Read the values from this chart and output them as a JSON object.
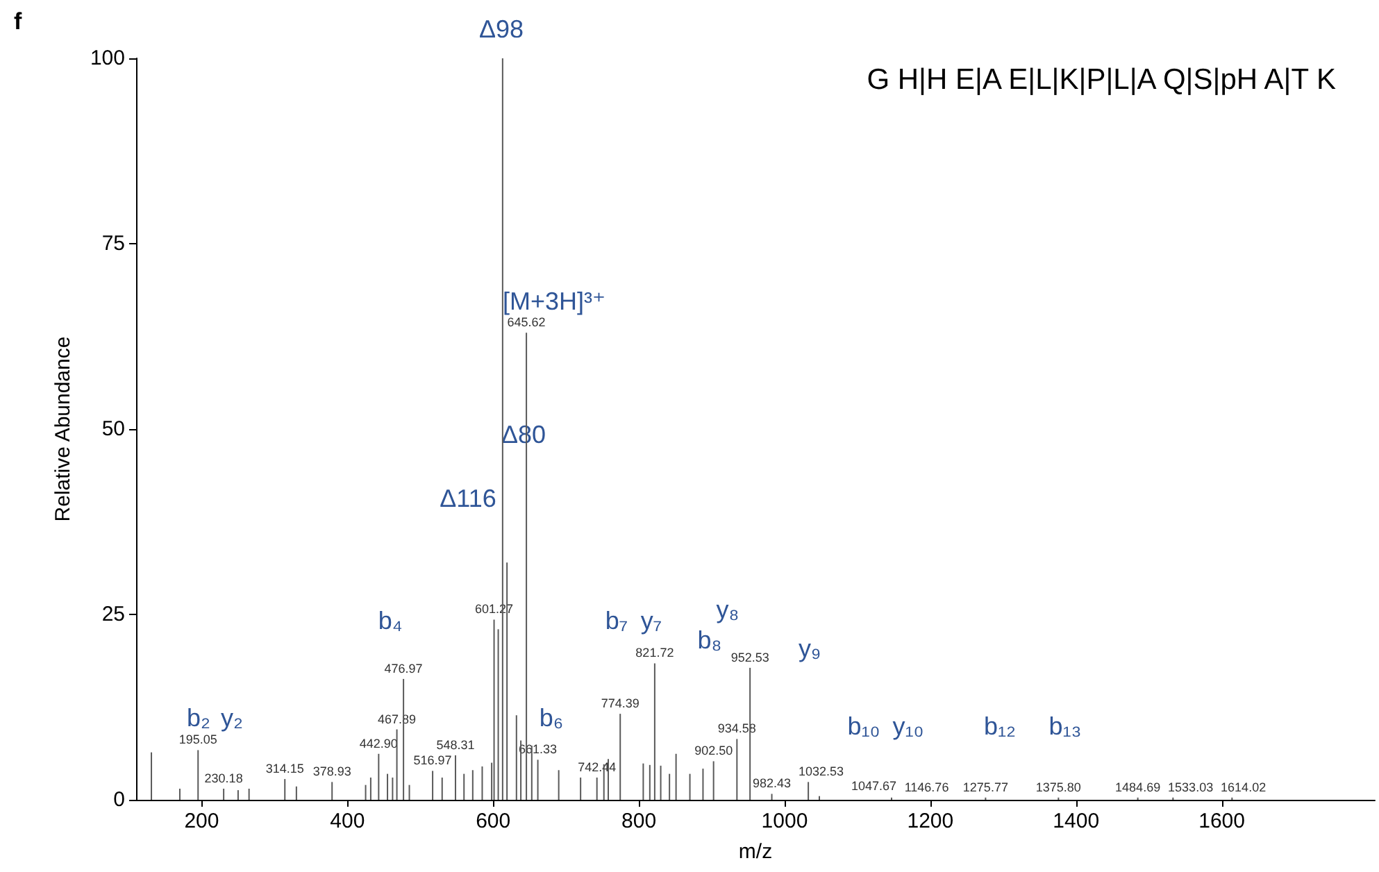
{
  "chart_data": {
    "type": "bar",
    "xlabel": "m/z",
    "ylabel": "Relative Abundance",
    "color": "#595959",
    "x": [
      131,
      170,
      195.05,
      230.18,
      250,
      265,
      314.15,
      330,
      378.93,
      425,
      432,
      442.9,
      455,
      462,
      467.89,
      476.97,
      485,
      516.97,
      530,
      548.31,
      560,
      572,
      585,
      598,
      601.27,
      607,
      613,
      619,
      632,
      638,
      645.62,
      653,
      661.33,
      690,
      720,
      742.44,
      752,
      758,
      774.39,
      806,
      815,
      821.72,
      830,
      842,
      851,
      870,
      888,
      902.5,
      934.58,
      952.53,
      982.43,
      1032.53,
      1047.67,
      1146.76,
      1275.77,
      1375.8,
      1484.69,
      1533.03,
      1614.02
    ],
    "values": [
      6.4,
      1.5,
      6.7,
      1.5,
      1.3,
      1.5,
      2.8,
      1.8,
      2.4,
      2,
      3,
      6.2,
      3.5,
      3,
      9.5,
      16.3,
      2,
      3.9,
      3,
      6,
      3.5,
      4,
      4.5,
      5,
      24.3,
      23,
      100,
      32,
      11.4,
      8,
      63,
      7.3,
      5.4,
      4,
      3,
      3,
      4.8,
      5.5,
      11.6,
      4.9,
      4.7,
      18.4,
      4.6,
      3.5,
      6.2,
      3.5,
      4.2,
      5.2,
      8.2,
      17.8,
      0.8,
      2.4,
      0.5,
      0.3,
      0.3,
      0.3,
      0.3,
      0.3,
      0.3
    ],
    "xlim": [
      110,
      1810
    ],
    "xticks": [
      200,
      400,
      600,
      800,
      1000,
      1200,
      1400,
      1600
    ],
    "ylim": [
      0,
      100
    ],
    "yticks": [
      0,
      25,
      50,
      75,
      100
    ],
    "grid": false,
    "annotations": [
      "f",
      "G H|H E|A E|L|K|P|L|A Q|S|pH A|T K",
      "Δ98",
      "[M+3H]³⁺",
      "Δ80",
      "Δ116",
      "b₂",
      "y₂",
      "b₄",
      "b₆",
      "b₇",
      "y₇",
      "b₈",
      "y₈",
      "y₉",
      "b₁₀",
      "y₁₀",
      "b₁₂",
      "b₁₃",
      {
        "text": "195.05",
        "x": 195.05,
        "y": 6.7
      },
      {
        "text": "230.18",
        "x": 230.18,
        "y": 1.5
      },
      {
        "text": "314.15",
        "x": 314.15,
        "y": 2.8
      },
      {
        "text": "378.93",
        "x": 378.93,
        "y": 2.4
      },
      {
        "text": "442.90",
        "x": 442.9,
        "y": 6.2
      },
      {
        "text": "467.89",
        "x": 467.89,
        "y": 9.5
      },
      {
        "text": "476.97",
        "x": 476.97,
        "y": 16.3
      },
      {
        "text": "516.97",
        "x": 516.97,
        "y": 3.9
      },
      {
        "text": "548.31",
        "x": 548.31,
        "y": 6
      },
      {
        "text": "601.27",
        "x": 601.27,
        "y": 24.3
      },
      {
        "text": "645.62",
        "x": 645.62,
        "y": 63
      },
      {
        "text": "661.33",
        "x": 661.33,
        "y": 5.4
      },
      {
        "text": "742.44",
        "x": 742.44,
        "y": 3
      },
      {
        "text": "774.39",
        "x": 774.39,
        "y": 11.6
      },
      {
        "text": "821.72",
        "x": 821.72,
        "y": 18.4
      },
      {
        "text": "902.50",
        "x": 902.5,
        "y": 5.2
      },
      {
        "text": "934.58",
        "x": 934.58,
        "y": 8.2
      },
      {
        "text": "952.53",
        "x": 952.53,
        "y": 17.8
      },
      {
        "text": "982.43",
        "x": 982.43,
        "y": 0.8
      },
      {
        "text": "1032.53",
        "x": 1032.53,
        "y": 2.4
      },
      {
        "text": "1047.67",
        "x": 1047.67,
        "y": 0.5
      },
      {
        "text": "1146.76",
        "x": 1146.76,
        "y": 0.3
      },
      {
        "text": "1275.77",
        "x": 1275.77,
        "y": 0.3
      },
      {
        "text": "1375.80",
        "x": 1375.8,
        "y": 0.3
      },
      {
        "text": "1484.69",
        "x": 1484.69,
        "y": 0.3
      },
      {
        "text": "1533.03",
        "x": 1533.03,
        "y": 0.3
      },
      {
        "text": "1614.02",
        "x": 1614.02,
        "y": 0.3
      }
    ]
  }
}
